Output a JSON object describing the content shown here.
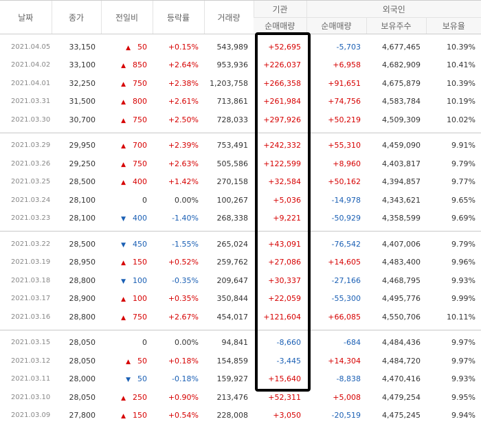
{
  "headers": {
    "date": "날짜",
    "close": "종가",
    "change": "전일비",
    "rate": "등락률",
    "volume": "거래량",
    "institution": "기관",
    "foreign": "외국인",
    "inst_net": "순매매량",
    "for_net": "순매매량",
    "holdings": "보유주수",
    "ratio": "보유율"
  },
  "groups": [
    [
      {
        "date": "2021.04.05",
        "close": "33,150",
        "dir": "up",
        "chg": "50",
        "rate": "+0.15%",
        "vol": "543,989",
        "inst": "+52,695",
        "frn": "-5,703",
        "hold": "4,677,465",
        "ratio": "10.39%"
      },
      {
        "date": "2021.04.02",
        "close": "33,100",
        "dir": "up",
        "chg": "850",
        "rate": "+2.64%",
        "vol": "953,936",
        "inst": "+226,037",
        "frn": "+6,958",
        "hold": "4,682,909",
        "ratio": "10.41%"
      },
      {
        "date": "2021.04.01",
        "close": "32,250",
        "dir": "up",
        "chg": "750",
        "rate": "+2.38%",
        "vol": "1,203,758",
        "inst": "+266,358",
        "frn": "+91,651",
        "hold": "4,675,879",
        "ratio": "10.39%"
      },
      {
        "date": "2021.03.31",
        "close": "31,500",
        "dir": "up",
        "chg": "800",
        "rate": "+2.61%",
        "vol": "713,861",
        "inst": "+261,984",
        "frn": "+74,756",
        "hold": "4,583,784",
        "ratio": "10.19%"
      },
      {
        "date": "2021.03.30",
        "close": "30,700",
        "dir": "up",
        "chg": "750",
        "rate": "+2.50%",
        "vol": "728,033",
        "inst": "+297,926",
        "frn": "+50,219",
        "hold": "4,509,309",
        "ratio": "10.02%"
      }
    ],
    [
      {
        "date": "2021.03.29",
        "close": "29,950",
        "dir": "up",
        "chg": "700",
        "rate": "+2.39%",
        "vol": "753,491",
        "inst": "+242,332",
        "frn": "+55,310",
        "hold": "4,459,090",
        "ratio": "9.91%"
      },
      {
        "date": "2021.03.26",
        "close": "29,250",
        "dir": "up",
        "chg": "750",
        "rate": "+2.63%",
        "vol": "505,586",
        "inst": "+122,599",
        "frn": "+8,960",
        "hold": "4,403,817",
        "ratio": "9.79%"
      },
      {
        "date": "2021.03.25",
        "close": "28,500",
        "dir": "up",
        "chg": "400",
        "rate": "+1.42%",
        "vol": "270,158",
        "inst": "+32,584",
        "frn": "+50,162",
        "hold": "4,394,857",
        "ratio": "9.77%"
      },
      {
        "date": "2021.03.24",
        "close": "28,100",
        "dir": "flat",
        "chg": "0",
        "rate": "0.00%",
        "vol": "100,267",
        "inst": "+5,036",
        "frn": "-14,978",
        "hold": "4,343,621",
        "ratio": "9.65%"
      },
      {
        "date": "2021.03.23",
        "close": "28,100",
        "dir": "down",
        "chg": "400",
        "rate": "-1.40%",
        "vol": "268,338",
        "inst": "+9,221",
        "frn": "-50,929",
        "hold": "4,358,599",
        "ratio": "9.69%"
      }
    ],
    [
      {
        "date": "2021.03.22",
        "close": "28,500",
        "dir": "down",
        "chg": "450",
        "rate": "-1.55%",
        "vol": "265,024",
        "inst": "+43,091",
        "frn": "-76,542",
        "hold": "4,407,006",
        "ratio": "9.79%"
      },
      {
        "date": "2021.03.19",
        "close": "28,950",
        "dir": "up",
        "chg": "150",
        "rate": "+0.52%",
        "vol": "259,762",
        "inst": "+27,086",
        "frn": "+14,605",
        "hold": "4,483,400",
        "ratio": "9.96%"
      },
      {
        "date": "2021.03.18",
        "close": "28,800",
        "dir": "down",
        "chg": "100",
        "rate": "-0.35%",
        "vol": "209,647",
        "inst": "+30,337",
        "frn": "-27,166",
        "hold": "4,468,795",
        "ratio": "9.93%"
      },
      {
        "date": "2021.03.17",
        "close": "28,900",
        "dir": "up",
        "chg": "100",
        "rate": "+0.35%",
        "vol": "350,844",
        "inst": "+22,059",
        "frn": "-55,300",
        "hold": "4,495,776",
        "ratio": "9.99%"
      },
      {
        "date": "2021.03.16",
        "close": "28,800",
        "dir": "up",
        "chg": "750",
        "rate": "+2.67%",
        "vol": "454,017",
        "inst": "+121,604",
        "frn": "+66,085",
        "hold": "4,550,706",
        "ratio": "10.11%"
      }
    ],
    [
      {
        "date": "2021.03.15",
        "close": "28,050",
        "dir": "flat",
        "chg": "0",
        "rate": "0.00%",
        "vol": "94,841",
        "inst": "-8,660",
        "frn": "-684",
        "hold": "4,484,436",
        "ratio": "9.97%"
      },
      {
        "date": "2021.03.12",
        "close": "28,050",
        "dir": "up",
        "chg": "50",
        "rate": "+0.18%",
        "vol": "154,859",
        "inst": "-3,445",
        "frn": "+14,304",
        "hold": "4,484,720",
        "ratio": "9.97%"
      },
      {
        "date": "2021.03.11",
        "close": "28,000",
        "dir": "down",
        "chg": "50",
        "rate": "-0.18%",
        "vol": "159,927",
        "inst": "+15,640",
        "frn": "-8,838",
        "hold": "4,470,416",
        "ratio": "9.93%"
      },
      {
        "date": "2021.03.10",
        "close": "28,050",
        "dir": "up",
        "chg": "250",
        "rate": "+0.90%",
        "vol": "213,476",
        "inst": "+52,311",
        "frn": "+5,008",
        "hold": "4,479,254",
        "ratio": "9.95%"
      },
      {
        "date": "2021.03.09",
        "close": "27,800",
        "dir": "up",
        "chg": "150",
        "rate": "+0.54%",
        "vol": "228,008",
        "inst": "+3,050",
        "frn": "-20,519",
        "hold": "4,475,245",
        "ratio": "9.94%"
      }
    ]
  ],
  "colors": {
    "up": "#d60000",
    "down": "#1a5fb4",
    "highlight": "#000000"
  }
}
